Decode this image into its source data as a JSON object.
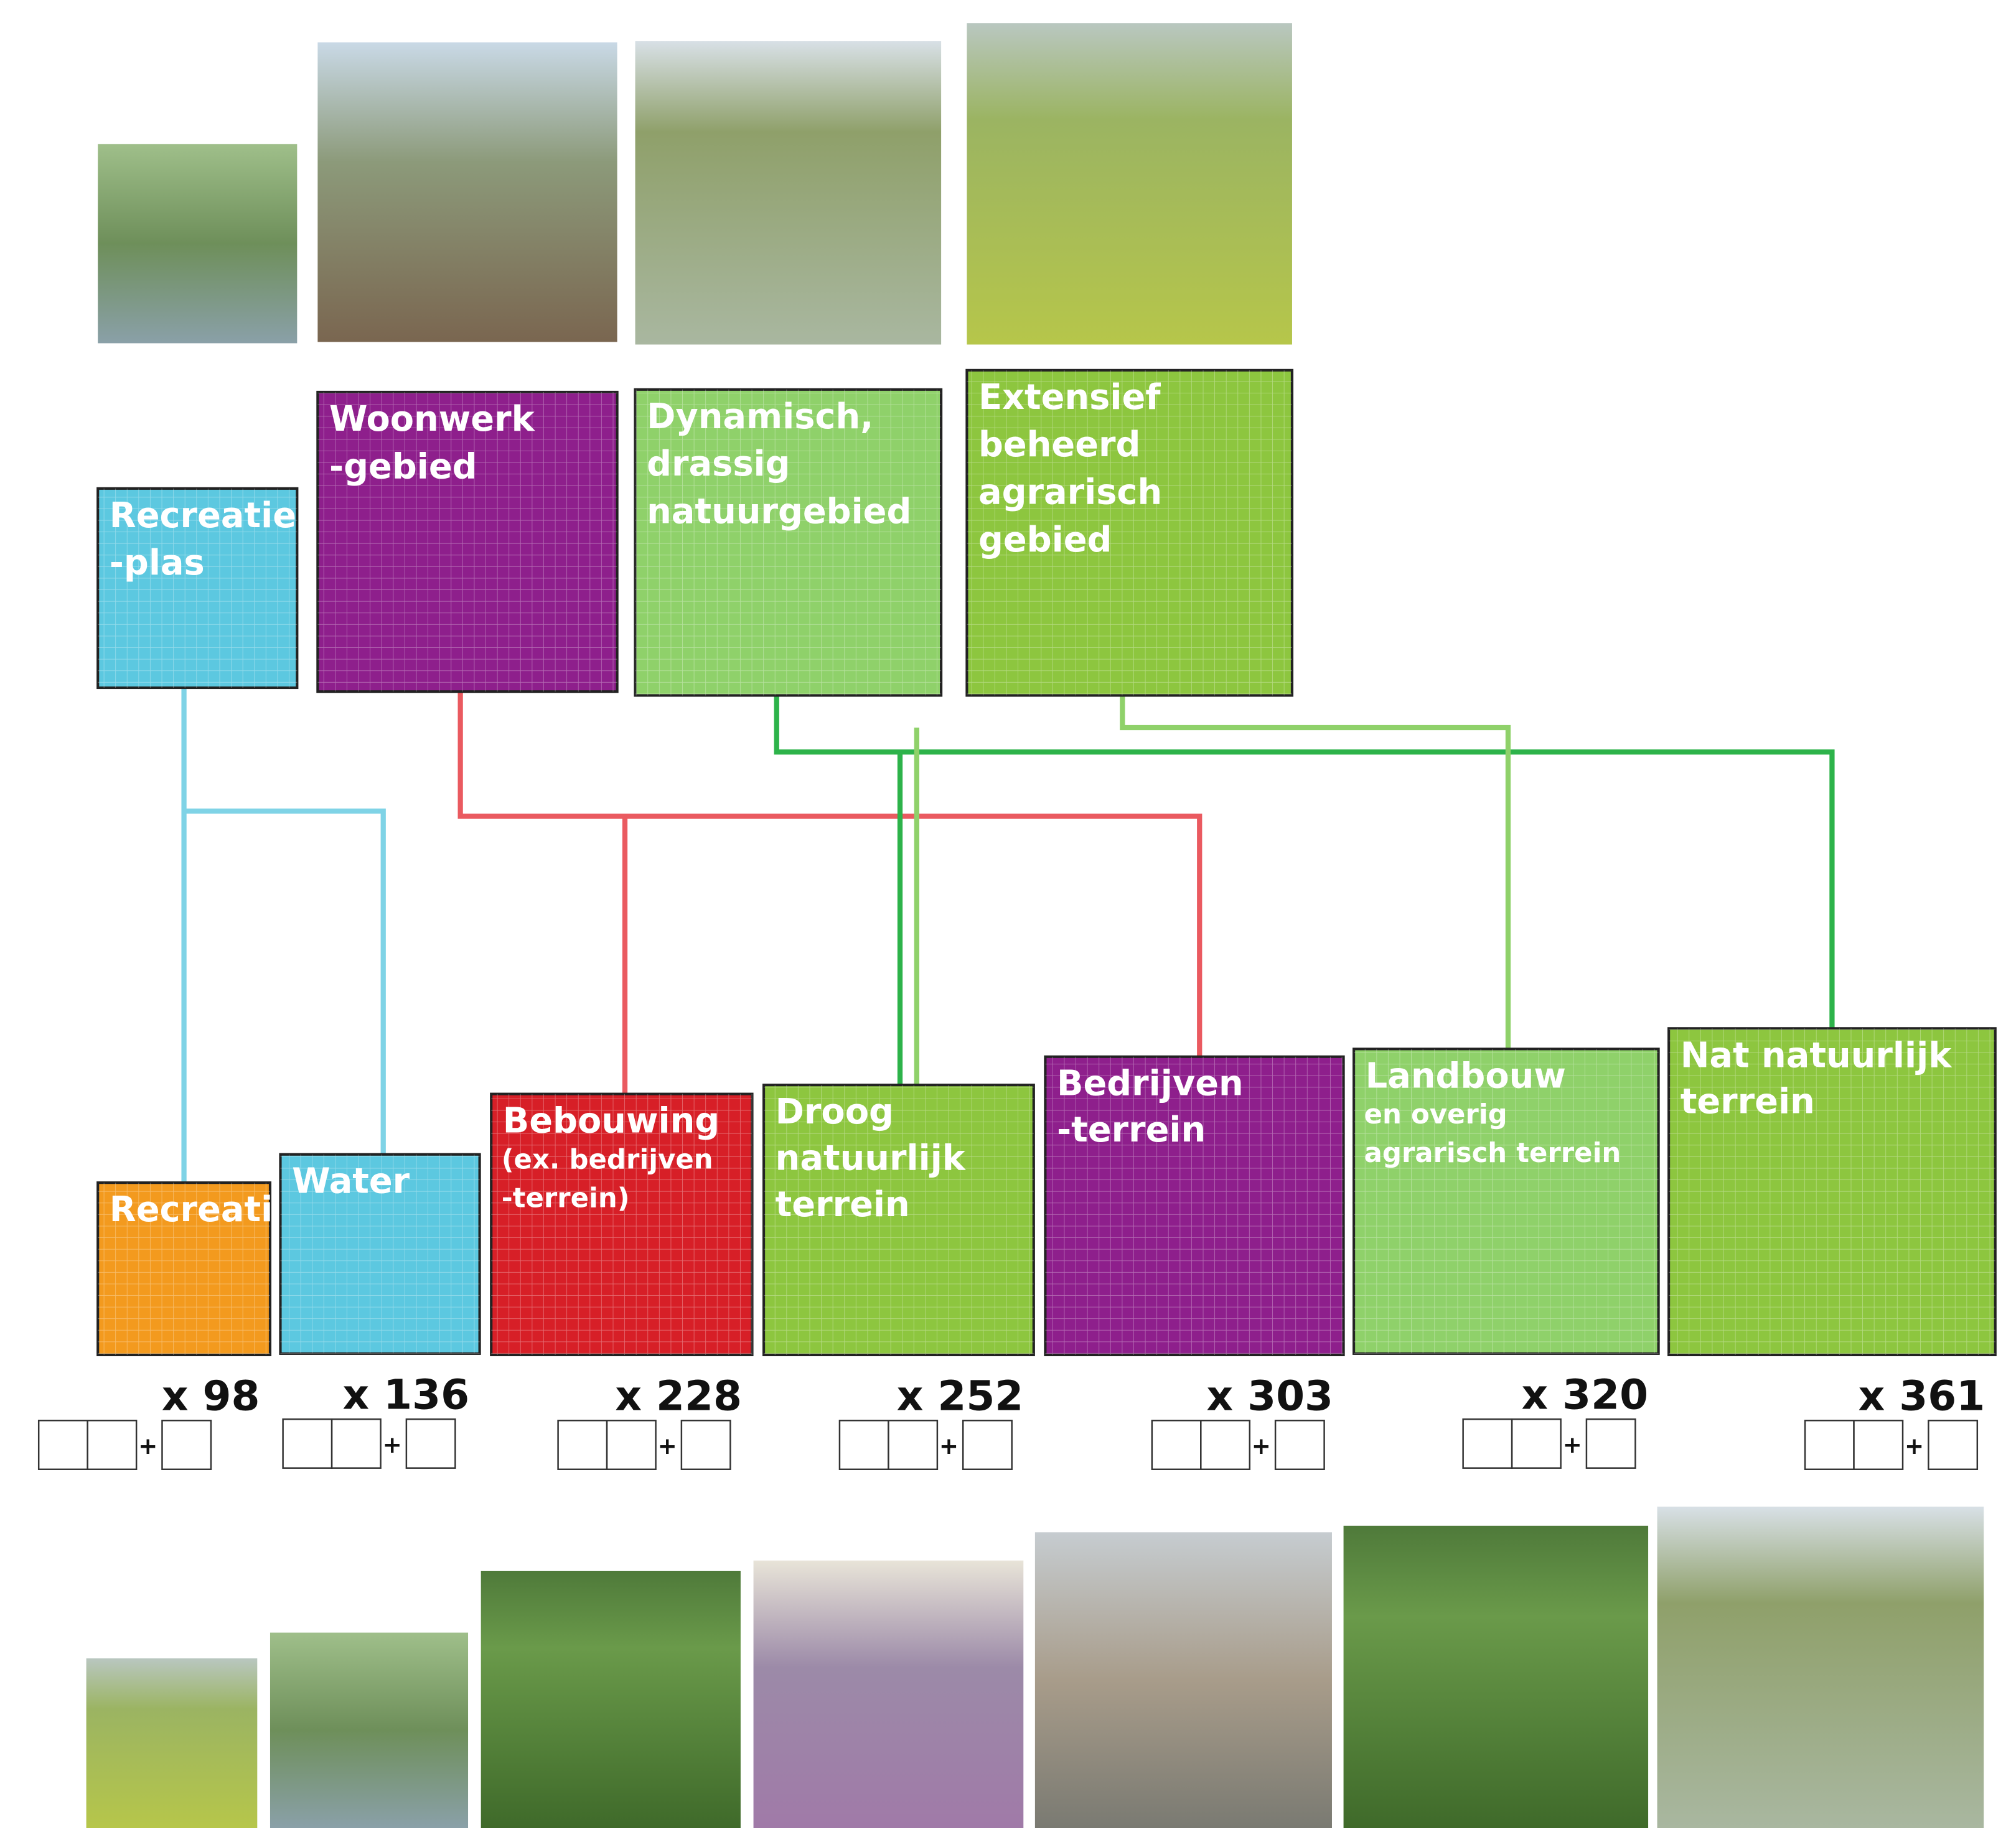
{
  "top_nodes": [
    {
      "lines": [
        "Recreatie",
        "-plas"
      ],
      "color": "#5cc8e0"
    },
    {
      "lines": [
        "Woonwerk",
        "-gebied"
      ],
      "color": "#8e1f8c"
    },
    {
      "lines": [
        "Dynamisch,",
        "drassig",
        "natuurgebied"
      ],
      "color": "#8fd16a"
    },
    {
      "lines": [
        "Extensief",
        "beheerd",
        "agrarisch",
        "gebied"
      ],
      "color": "#8dc63f"
    }
  ],
  "bottom_nodes": [
    {
      "lines": [
        "Recreatie"
      ],
      "color": "#f39a1e",
      "multiplier": "x 98"
    },
    {
      "lines": [
        "Water"
      ],
      "color": "#5cc8e0",
      "multiplier": "x 136"
    },
    {
      "lines": [
        "Bebouwing"
      ],
      "sublines": [
        "(ex. bedrijven",
        "-terrein)"
      ],
      "color": "#d71f27",
      "multiplier": "x 228"
    },
    {
      "lines": [
        "Droog",
        "natuurlijk",
        "terrein"
      ],
      "color": "#8dc63f",
      "multiplier": "x 252"
    },
    {
      "lines": [
        "Bedrijven",
        "-terrein"
      ],
      "color": "#8e1f8c",
      "multiplier": "x 303"
    },
    {
      "lines": [
        "Landbouw"
      ],
      "sublines": [
        "en overig",
        "agrarisch terrein"
      ],
      "color": "#8fd16a",
      "multiplier": "x 320"
    },
    {
      "lines": [
        "Nat natuurlijk",
        "terrein"
      ],
      "color": "#8dc63f",
      "multiplier": "x 361"
    }
  ],
  "input_separator": "+"
}
